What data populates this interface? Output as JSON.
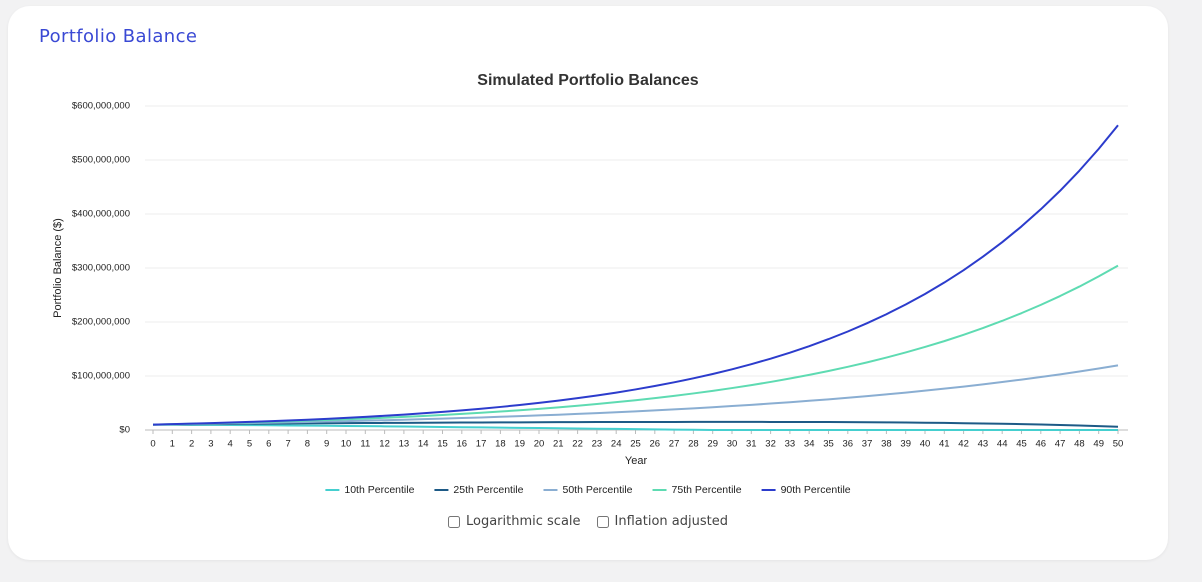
{
  "header": {
    "title": "Portfolio Balance"
  },
  "chart_data": {
    "type": "line",
    "title": "Simulated Portfolio Balances",
    "x_label": "Year",
    "y_label": "Portfolio Balance ($)",
    "x": [
      0,
      1,
      2,
      3,
      4,
      5,
      6,
      7,
      8,
      9,
      10,
      11,
      12,
      13,
      14,
      15,
      16,
      17,
      18,
      19,
      20,
      21,
      22,
      23,
      24,
      25,
      26,
      27,
      28,
      29,
      30,
      31,
      32,
      33,
      34,
      35,
      36,
      37,
      38,
      39,
      40,
      41,
      42,
      43,
      44,
      45,
      46,
      47,
      48,
      49,
      50
    ],
    "xlim": [
      0,
      50
    ],
    "xticks": [
      0,
      1,
      2,
      3,
      4,
      5,
      6,
      7,
      8,
      9,
      10,
      11,
      12,
      13,
      14,
      15,
      16,
      17,
      18,
      19,
      20,
      21,
      22,
      23,
      24,
      25,
      26,
      27,
      28,
      29,
      30,
      31,
      32,
      33,
      34,
      35,
      36,
      37,
      38,
      39,
      40,
      41,
      42,
      43,
      44,
      45,
      46,
      47,
      48,
      49,
      50
    ],
    "ylim": [
      0,
      600000000
    ],
    "yticks": [
      {
        "value": 0,
        "label": "$0"
      },
      {
        "value": 100000000,
        "label": "$100,000,000"
      },
      {
        "value": 200000000,
        "label": "$200,000,000"
      },
      {
        "value": 300000000,
        "label": "$300,000,000"
      },
      {
        "value": 400000000,
        "label": "$400,000,000"
      },
      {
        "value": 500000000,
        "label": "$500,000,000"
      },
      {
        "value": 600000000,
        "label": "$600,000,000"
      }
    ],
    "grid": true,
    "legend": "bottom",
    "series": [
      {
        "name": "10th Percentile",
        "color": "#45cfcf",
        "values": [
          10000000.0,
          9800000.0,
          9600000.0,
          9400000.0,
          9200000.0,
          9000000.0,
          8700000.0,
          8400000.0,
          8100000.0,
          7800000.0,
          7500000.0,
          7200000.0,
          6800000.0,
          6400000.0,
          6000000.0,
          5600000.0,
          5200000.0,
          4800000.0,
          4400000.0,
          4000000.0,
          3600000.0,
          3200000.0,
          2800000.0,
          2400000.0,
          2000000.0,
          1600000.0,
          1200000.0,
          800000.0,
          400000.0,
          0,
          0,
          0,
          0,
          0,
          0,
          0,
          0,
          0,
          0,
          0,
          0,
          0,
          0,
          0,
          0,
          0,
          0,
          0,
          0,
          0,
          0
        ]
      },
      {
        "name": "25th Percentile",
        "color": "#1d5a86",
        "values": [
          10000000.0,
          10300000.0,
          10600000.0,
          10900000.0,
          11200000.0,
          11500000.0,
          11800000.0,
          12000000.0,
          12300000.0,
          12500000.0,
          12700000.0,
          12900000.0,
          13100000.0,
          13300000.0,
          13500000.0,
          13700000.0,
          13800000.0,
          14000000.0,
          14100000.0,
          14200000.0,
          14400000.0,
          14500000.0,
          14600000.0,
          14700000.0,
          14800000.0,
          14800000.0,
          14900000.0,
          14900000.0,
          15000000.0,
          15000000.0,
          15000000.0,
          15000000.0,
          14900000.0,
          14900000.0,
          14800000.0,
          14700000.0,
          14500000.0,
          14300000.0,
          14100000.0,
          13800000.0,
          13500000.0,
          13100000.0,
          12600000.0,
          12100000.0,
          11500000.0,
          10900000.0,
          10100000.0,
          9300000.0,
          8300000.0,
          7200000.0,
          6000000.0
        ]
      },
      {
        "name": "50th Percentile",
        "color": "#8aaed2",
        "values": [
          10000000.0,
          10510000.0,
          11040000.0,
          11610000.0,
          12200000.0,
          12820000.0,
          13470000.0,
          14160000.0,
          14880000.0,
          15630000.0,
          16430000.0,
          17260000.0,
          18140000.0,
          19070000.0,
          20040000.0,
          21060000.0,
          22130000.0,
          23250000.0,
          24440000.0,
          25680000.0,
          26990000.0,
          28360000.0,
          29800000.0,
          31320000.0,
          32910000.0,
          34590000.0,
          36350000.0,
          38200000.0,
          40140000.0,
          42190000.0,
          44330000.0,
          46590000.0,
          48960000.0,
          51450000.0,
          54070000.0,
          56820000.0,
          59710000.0,
          62750000.0,
          65950000.0,
          69300000.0,
          72830000.0,
          76540000.0,
          80430000.0,
          84530000.0,
          88830000.0,
          93350000.0,
          98100000.0,
          103100000.0,
          108300000.0,
          113900000.0,
          119700000.0
        ]
      },
      {
        "name": "75th Percentile",
        "color": "#5edbb2",
        "values": [
          10000000.0,
          10710000.0,
          11460000.0,
          12270000.0,
          13140000.0,
          14070000.0,
          15070000.0,
          16130000.0,
          17270000.0,
          18490000.0,
          19800000.0,
          21200000.0,
          22700000.0,
          24310000.0,
          26020000.0,
          27860000.0,
          29830000.0,
          31940000.0,
          34200000.0,
          36620000.0,
          39210000.0,
          41980000.0,
          44950000.0,
          48130000.0,
          51530000.0,
          55180000.0,
          59080000.0,
          63260000.0,
          67730000.0,
          72520000.0,
          77650000.0,
          83140000.0,
          89020000.0,
          95310000.0,
          102050000.0,
          109300000.0,
          117000000.0,
          125300000.0,
          134100000.0,
          143600000.0,
          153800000.0,
          164600000.0,
          176300000.0,
          188700000.0,
          202100000.0,
          216400000.0,
          231700000.0,
          248100000.0,
          265600000.0,
          284400000.0,
          304500000.0
        ]
      },
      {
        "name": "90th Percentile",
        "color": "#2c3ccc",
        "values": [
          10000000.0,
          10840000.0,
          11750000.0,
          12740000.0,
          13810000.0,
          14970000.0,
          16220000.0,
          17590000.0,
          19060000.0,
          20670000.0,
          22400000.0,
          24280000.0,
          26320000.0,
          28530000.0,
          30930000.0,
          33530000.0,
          36350000.0,
          39400000.0,
          42710000.0,
          46300000.0,
          50190000.0,
          54400000.0,
          58970000.0,
          63930000.0,
          69300000.0,
          75120000.0,
          81430000.0,
          88270000.0,
          95680000.0,
          103700000.0,
          112400000.0,
          121900000.0,
          132100000.0,
          143200000.0,
          155300000.0,
          168300000.0,
          182400000.0,
          197800000.0,
          214400000.0,
          232400000.0,
          251900000.0,
          273100000.0,
          296000000.0,
          320900000.0,
          347800000.0,
          377000000.0,
          408700000.0,
          443000000.0,
          480300000.0,
          520600000.0,
          564300000.0
        ]
      }
    ]
  },
  "controls": [
    {
      "label": "Logarithmic scale",
      "checked": false
    },
    {
      "label": "Inflation adjusted",
      "checked": false
    }
  ]
}
